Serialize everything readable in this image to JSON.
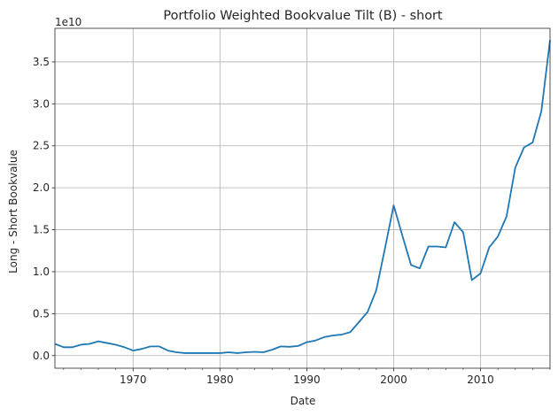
{
  "chart_data": {
    "type": "line",
    "title": "Portfolio Weighted Bookvalue Tilt (B) - short",
    "xlabel": "Date",
    "ylabel": "Long - Short Bookvalue",
    "y_offset_label": "1e10",
    "xlim": [
      1961,
      2018
    ],
    "ylim": [
      -0.15,
      3.9
    ],
    "x_ticks": [
      1970,
      1980,
      1990,
      2000,
      2010
    ],
    "x_minor_ticks": [
      1962,
      1964,
      1966,
      1968,
      1972,
      1974,
      1976,
      1978,
      1982,
      1984,
      1986,
      1988,
      1992,
      1994,
      1996,
      1998,
      2002,
      2004,
      2006,
      2008,
      2012,
      2014,
      2016,
      2018
    ],
    "x_tick_labels": [
      "1970",
      "1980",
      "1990",
      "2000",
      "2010"
    ],
    "y_ticks": [
      0.0,
      0.5,
      1.0,
      1.5,
      2.0,
      2.5,
      3.0,
      3.5
    ],
    "y_tick_labels": [
      "0.0",
      "0.5",
      "1.0",
      "1.5",
      "2.0",
      "2.5",
      "3.0",
      "3.5"
    ],
    "grid": true,
    "line_color": "#1f77b4",
    "series": [
      {
        "x": [
          1961,
          1962,
          1963,
          1964,
          1965,
          1966,
          1967,
          1968,
          1969,
          1970,
          1971,
          1972,
          1973,
          1974,
          1975,
          1976,
          1977,
          1978,
          1979,
          1980,
          1981,
          1982,
          1983,
          1984,
          1985,
          1986,
          1987,
          1988,
          1989,
          1990,
          1991,
          1992,
          1993,
          1994,
          1995,
          1996,
          1997,
          1998,
          1999,
          2000,
          2001,
          2002,
          2003,
          2004,
          2005,
          2006,
          2007,
          2008,
          2009,
          2010,
          2011,
          2012,
          2013,
          2014,
          2015,
          2016,
          2017,
          2018
        ],
        "y": [
          0.14,
          0.1,
          0.1,
          0.13,
          0.14,
          0.17,
          0.15,
          0.13,
          0.1,
          0.06,
          0.08,
          0.11,
          0.11,
          0.06,
          0.04,
          0.03,
          0.03,
          0.03,
          0.03,
          0.03,
          0.04,
          0.03,
          0.04,
          0.045,
          0.04,
          0.07,
          0.11,
          0.105,
          0.115,
          0.16,
          0.18,
          0.22,
          0.24,
          0.25,
          0.28,
          0.4,
          0.52,
          0.78,
          1.28,
          1.79,
          1.43,
          1.08,
          1.04,
          1.3,
          1.3,
          1.29,
          1.59,
          1.47,
          0.9,
          0.98,
          1.29,
          1.42,
          1.66,
          2.24,
          2.48,
          2.54,
          2.91,
          3.76
        ]
      }
    ]
  }
}
